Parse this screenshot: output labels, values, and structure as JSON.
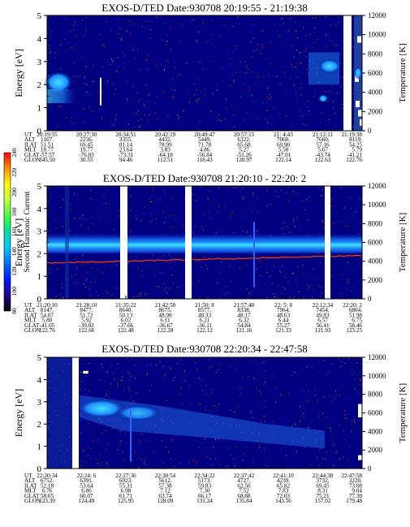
{
  "colors": {
    "background": "#000080",
    "band_core": "#40e0ff",
    "band_mid": "#1e90ff",
    "band_outer": "#1040d0",
    "noise_red": "#ff3c00",
    "gap": "#ffffff"
  },
  "colorbar": {
    "label": "Second Harmonic Current",
    "ticks": [
      "80",
      "100",
      "120",
      "140",
      "160",
      "180",
      "200",
      "220",
      "240"
    ],
    "stops": [
      "#000000",
      "#20008a",
      "#0018ff",
      "#0070ff",
      "#00c8ff",
      "#00e0a0",
      "#40ff40",
      "#c0ff40",
      "#ffff00",
      "#ff9000",
      "#ff0000"
    ]
  },
  "chart_data": [
    {
      "type": "heatmap",
      "title": "EXOS-D/TED   Date:930708   20:19:55 - 21:19:38",
      "ylabel": "Energy [eV]",
      "y2label": "Temperature [K]",
      "ylim": [
        0,
        5
      ],
      "y2lim": [
        0,
        12000
      ],
      "yticks": [
        "0",
        "1",
        "2",
        "3",
        "4",
        "5"
      ],
      "y2ticks": [
        "0",
        "2000",
        "4000",
        "6000",
        "8000",
        "10000",
        "12000"
      ],
      "row_labels": [
        "UT",
        "ALT",
        "ILAT",
        "MLT",
        "GLAT",
        "GLON"
      ],
      "columns": [
        [
          "20:19:55",
          "1167.",
          "51.51",
          "18.77",
          "-57.57",
          "345.50"
        ],
        [
          "20:27:30",
          "2236.",
          "69.45",
          "19.77",
          "-76.83",
          "30.55"
        ],
        [
          "20:34:51",
          "3355.",
          "81.14",
          "23.64",
          "-73.31",
          "94.46"
        ],
        [
          "20:42:19",
          "4432.",
          "78.99",
          "3.83",
          "-64.18",
          "112.51"
        ],
        [
          "20:49:47",
          "5449.",
          "71.78",
          "4.86",
          "-56.84",
          "118.43"
        ],
        [
          "20:57:15",
          "6322.",
          "65.68",
          "5.27",
          "-51.26",
          "120.97"
        ],
        [
          "21: 4:43",
          "7060.",
          "60.90",
          "5.50",
          "-47.01",
          "122.14"
        ],
        [
          "21:12:11",
          "7660.",
          "57.16",
          "5.67",
          "-43.74",
          "122.63"
        ],
        [
          "21:19:38",
          "8119.",
          "54.25",
          "5.79",
          "-41.21",
          "122.76"
        ]
      ]
    },
    {
      "type": "heatmap",
      "title": "EXOS-D/TED   Date:930708  21:20:10 - 22:20: 2",
      "ylabel": "Energy [eV]",
      "y2label": "Temperature [K]",
      "ylim": [
        0,
        5
      ],
      "y2lim": [
        0,
        12000
      ],
      "yticks": [
        "0",
        "1",
        "2",
        "3",
        "4",
        "5"
      ],
      "y2ticks": [
        "0",
        "2000",
        "4000",
        "6000",
        "8000",
        "10000",
        "12000"
      ],
      "row_labels": [
        "UT",
        "ALT",
        "ILAT",
        "MLT",
        "GLAT",
        "GLON"
      ],
      "columns": [
        [
          "21:20:10",
          "8147.",
          "54.07",
          "5.80",
          "-41.05",
          "122.76"
        ],
        [
          "21:28:10",
          "8477.",
          "51.72",
          "5.92",
          "-39.02",
          "122.66"
        ],
        [
          "21:35:22",
          "8640.",
          "50.13",
          "6.02",
          "-37.66",
          "122.48"
        ],
        [
          "21:42:50",
          "8675.",
          "48.98",
          "6.11",
          "-36.67",
          "122.28"
        ],
        [
          "21:50: 8",
          "8577.",
          "48.33",
          "6.21",
          "-36.11",
          "122.12"
        ],
        [
          "21:57:40",
          "8338.",
          "48.17",
          "6.32",
          "54.84",
          "121.16"
        ],
        [
          "22: 5: 8",
          "7964.",
          "48.63",
          "6.44",
          "55.27",
          "121.33"
        ],
        [
          "22:12:34",
          "7454.",
          "49.83",
          "6.57",
          "56.41",
          "121.93"
        ],
        [
          "22:20: 2",
          "6804.",
          "51.98",
          "6.75",
          "58.46",
          "123.25"
        ]
      ]
    },
    {
      "type": "heatmap",
      "title": "EXOS-D/TED   Date:930708   22:20:34 - 22:47:58",
      "ylabel": "Energy [eV]",
      "y2label": "Temperature [K]",
      "ylim": [
        0,
        5
      ],
      "y2lim": [
        0,
        12000
      ],
      "yticks": [
        "0",
        "1",
        "2",
        "3",
        "4",
        "5"
      ],
      "y2ticks": [
        "0",
        "2000",
        "4000",
        "6000",
        "8000",
        "10000",
        "12000"
      ],
      "row_labels": [
        "UT",
        "ALT",
        "ILAT",
        "MLT",
        "GLAT",
        "GLON"
      ],
      "columns": [
        [
          "22:20:34",
          "6752.",
          "52.18",
          "6.76",
          "58.65",
          "123.39"
        ],
        [
          "22:24: 6",
          "6391.",
          "53.64",
          "6.86",
          "60.07",
          "124.49"
        ],
        [
          "22:27:36",
          "6023.",
          "55.31",
          "6.98",
          "61.71",
          "125.95"
        ],
        [
          "22:30:54",
          "5612.",
          "57.38",
          "7.12",
          "63.74",
          "128.09"
        ],
        [
          "22:34:22",
          "5173.",
          "59.83",
          "7.30",
          "66.17",
          "131.24"
        ],
        [
          "22:37:42",
          "4727.",
          "62.56",
          "7.52",
          "68.88",
          "135.84"
        ],
        [
          "22:41:10",
          "4239.",
          "65.82",
          "7.83",
          "72.03",
          "143.56"
        ],
        [
          "22:44:38",
          "3732.",
          "69.45",
          "8.31",
          "75.21",
          "157.02"
        ],
        [
          "22:47:58",
          "3220.",
          "73.08",
          "9.04",
          "77.39",
          "179.48"
        ]
      ]
    }
  ]
}
